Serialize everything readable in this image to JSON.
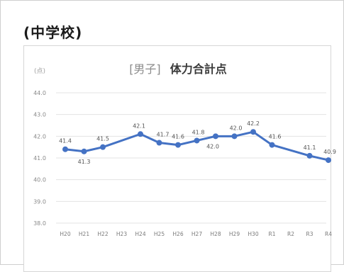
{
  "section_heading": "(中学校)",
  "chart_data": {
    "type": "line",
    "title_prefix": "[男子]",
    "title_main": "体力合計点",
    "ylabel": "(点)",
    "ylim": [
      38.0,
      44.0
    ],
    "yticks": [
      "44.0",
      "43.0",
      "42.0",
      "41.0",
      "40.0",
      "39.0",
      "38.0"
    ],
    "grid": true,
    "categories": [
      "H20",
      "H21",
      "H22",
      "H23",
      "H24",
      "H25",
      "H26",
      "H27",
      "H28",
      "H29",
      "H30",
      "R1",
      "R2",
      "R3",
      "R4"
    ],
    "series": [
      {
        "values": [
          41.4,
          41.3,
          41.5,
          null,
          42.1,
          41.7,
          41.6,
          41.8,
          42.0,
          42.0,
          42.2,
          41.6,
          null,
          41.1,
          40.9
        ],
        "labels": [
          "41.4",
          "41.3",
          "41.5",
          "",
          "42.1",
          "41.7",
          "41.6",
          "41.8",
          "42.0",
          "42.0",
          "42.2",
          "41.6",
          "",
          "41.1",
          "40.9"
        ],
        "color": "#4472c4"
      }
    ]
  }
}
